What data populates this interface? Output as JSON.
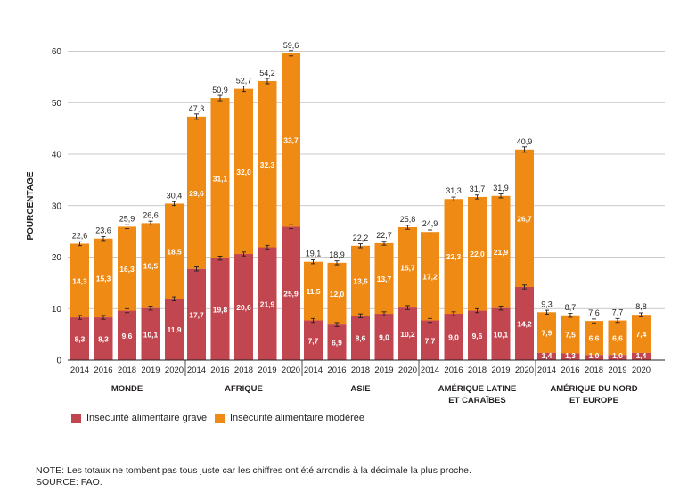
{
  "chart_data": {
    "type": "bar",
    "stacked": true,
    "ylabel": "POURCENTAGE",
    "ylim": [
      0,
      60
    ],
    "yticks": [
      0,
      10,
      20,
      30,
      40,
      50,
      60
    ],
    "grid": true,
    "colors": {
      "grave": "#c1464f",
      "moderee": "#ef8a14",
      "grid": "#b9b9b9",
      "text": "#231f20"
    },
    "groups": [
      {
        "label": [
          "MONDE"
        ],
        "years": [
          "2014",
          "2016",
          "2018",
          "2019",
          "2020"
        ],
        "grave": [
          "8,3",
          "8,3",
          "9,6",
          "10,1",
          "11,9"
        ],
        "moderee": [
          "14,3",
          "15,3",
          "16,3",
          "16,5",
          "18,5"
        ],
        "total": [
          "22,6",
          "23,6",
          "25,9",
          "26,6",
          "30,4"
        ]
      },
      {
        "label": [
          "AFRIQUE"
        ],
        "years": [
          "2014",
          "2016",
          "2018",
          "2019",
          "2020"
        ],
        "grave": [
          "17,7",
          "19,8",
          "20,6",
          "21,9",
          "25,9"
        ],
        "moderee": [
          "29,6",
          "31,1",
          "32,0",
          "32,3",
          "33,7"
        ],
        "total": [
          "47,3",
          "50,9",
          "52,7",
          "54,2",
          "59,6"
        ]
      },
      {
        "label": [
          "ASIE"
        ],
        "years": [
          "2014",
          "2016",
          "2018",
          "2019",
          "2020"
        ],
        "grave": [
          "7,7",
          "6,9",
          "8,6",
          "9,0",
          "10,2"
        ],
        "moderee": [
          "11,5",
          "12,0",
          "13,6",
          "13,7",
          "15,7"
        ],
        "total": [
          "19,1",
          "18,9",
          "22,2",
          "22,7",
          "25,8"
        ]
      },
      {
        "label": [
          "AMÉRIQUE LATINE",
          "ET CARAÏBES"
        ],
        "years": [
          "2014",
          "2016",
          "2018",
          "2019",
          "2020"
        ],
        "grave": [
          "7,7",
          "9,0",
          "9,6",
          "10,1",
          "14,2"
        ],
        "moderee": [
          "17,2",
          "22,3",
          "22,0",
          "21,9",
          "26,7"
        ],
        "total": [
          "24,9",
          "31,3",
          "31,7",
          "31,9",
          "40,9"
        ]
      },
      {
        "label": [
          "AMÉRIQUE DU NORD",
          "ET EUROPE"
        ],
        "years": [
          "2014",
          "2016",
          "2018",
          "2019",
          "2020"
        ],
        "grave": [
          "1,4",
          "1,3",
          "1,0",
          "1,0",
          "1,4"
        ],
        "moderee": [
          "7,9",
          "7,5",
          "6,6",
          "6,6",
          "7,4"
        ],
        "total": [
          "9,3",
          "8,7",
          "7,6",
          "7,7",
          "8,8"
        ]
      }
    ],
    "legend": {
      "grave": "Insécurité alimentaire grave",
      "moderee": "Insécurité alimentaire modérée"
    }
  },
  "note": "NOTE: Les totaux ne tombent pas tous juste car les chiffres ont été arrondis à la décimale la plus proche.",
  "source": "SOURCE: FAO."
}
